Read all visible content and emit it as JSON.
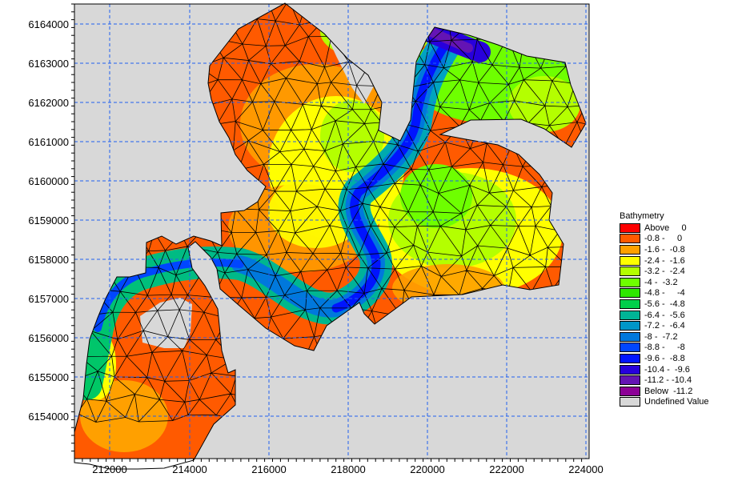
{
  "map": {
    "y_ticks": [
      "6164000",
      "6163000",
      "6162000",
      "6161000",
      "6160000",
      "6159000",
      "6158000",
      "6157000",
      "6156000",
      "6155000",
      "6154000"
    ],
    "x_ticks": [
      "212000",
      "214000",
      "216000",
      "218000",
      "220000",
      "222000",
      "224000"
    ],
    "background_color": "#d8d8d8",
    "grid_color": "#1f5ff0"
  },
  "legend": {
    "title": "Bathymetry",
    "items": [
      {
        "label": "Above     0",
        "color": "#ff0000"
      },
      {
        "label": "-0.8 -     0",
        "color": "#ff5a00"
      },
      {
        "label": "-1.6 -  -0.8",
        "color": "#ffa000"
      },
      {
        "label": "-2.4 -  -1.6",
        "color": "#ffff00"
      },
      {
        "label": "-3.2 -  -2.4",
        "color": "#b4ff00"
      },
      {
        "label": "-4 -  -3.2",
        "color": "#6eff00"
      },
      {
        "label": "-4.8 -     -4",
        "color": "#2ee800"
      },
      {
        "label": "-5.6 -  -4.8",
        "color": "#00d04a"
      },
      {
        "label": "-6.4 -  -5.6",
        "color": "#00b496"
      },
      {
        "label": "-7.2 -  -6.4",
        "color": "#0096c8"
      },
      {
        "label": "-8 -  -7.2",
        "color": "#0078dc"
      },
      {
        "label": "-8.8 -     -8",
        "color": "#0046ff"
      },
      {
        "label": "-9.6 -  -8.8",
        "color": "#0014ff"
      },
      {
        "label": "-10.4 -  -9.6",
        "color": "#2800dc"
      },
      {
        "label": "-11.2 - -10.4",
        "color": "#6414b4"
      },
      {
        "label": "Below  -11.2",
        "color": "#8c0096"
      },
      {
        "label": "Undefined Value",
        "color": "#d8d8d8"
      }
    ]
  }
}
